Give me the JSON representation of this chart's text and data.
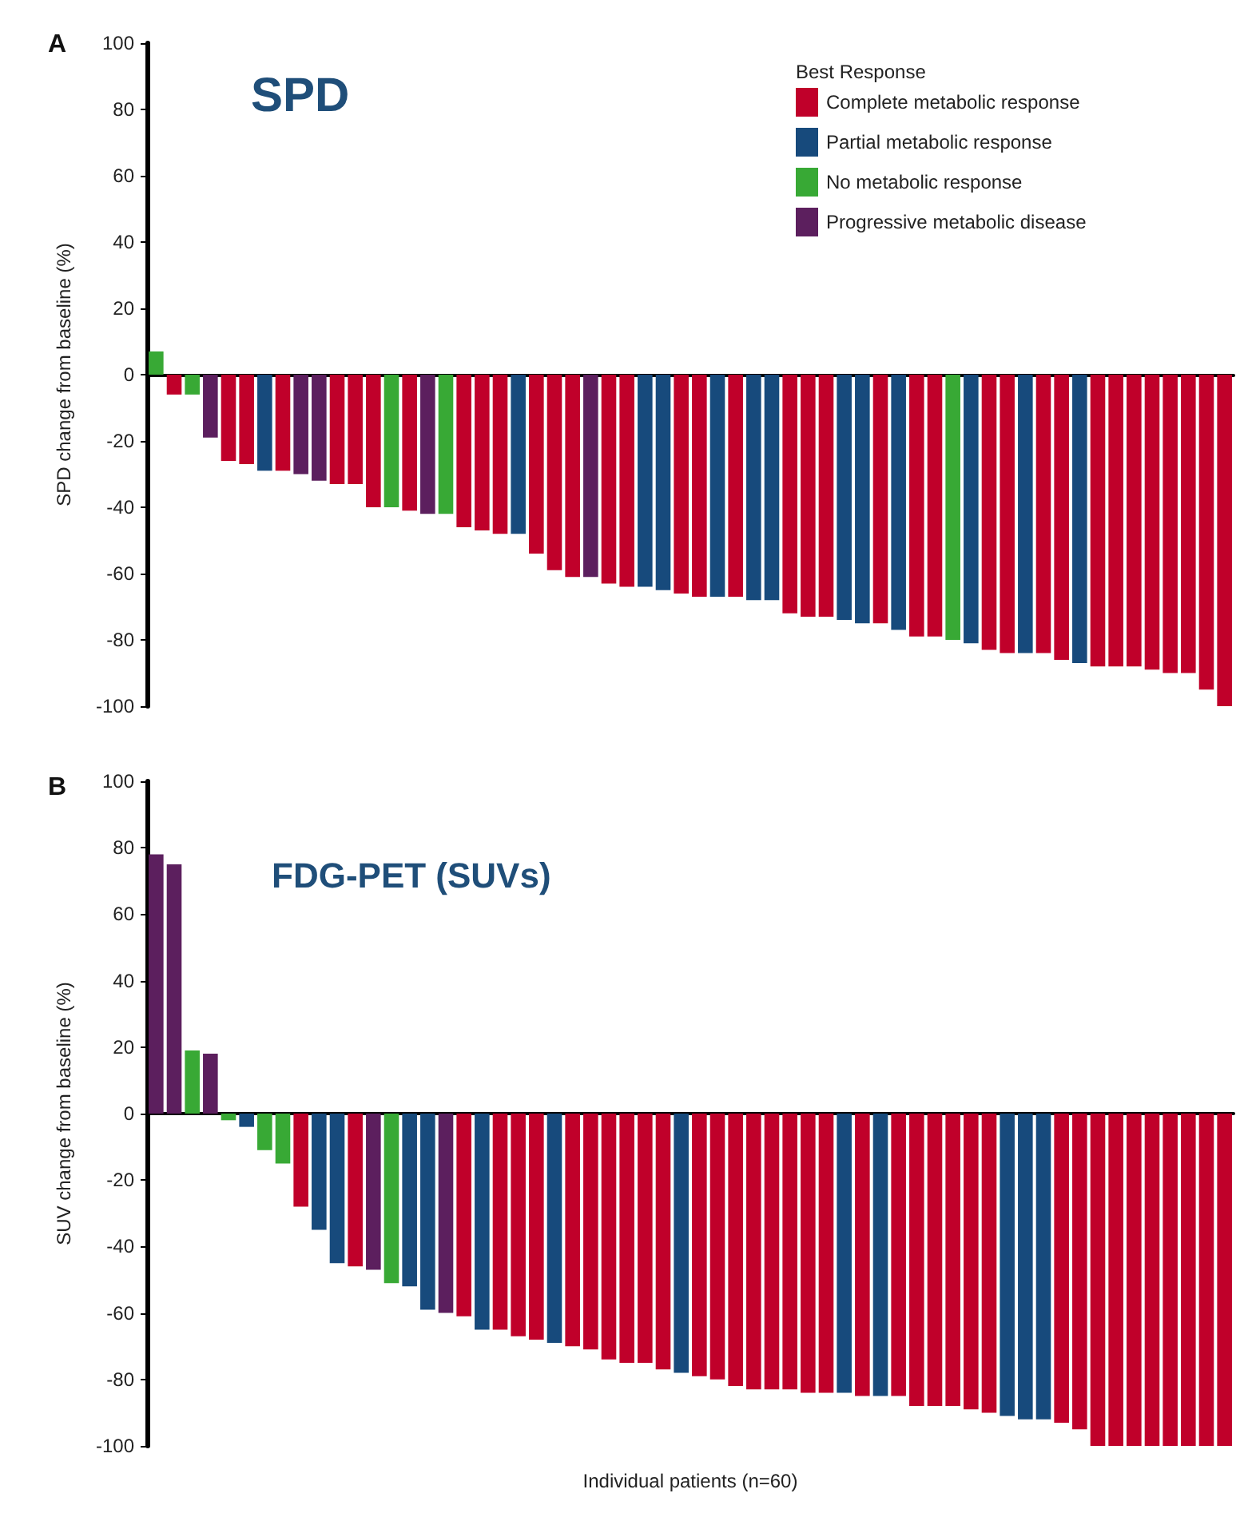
{
  "chart_data": [
    {
      "type": "bar",
      "title": "SPD",
      "ylabel": "SPD change from baseline (%)",
      "legend_title": "Best Response",
      "annotations": [
        "A"
      ],
      "legend": "top right",
      "stacked": true,
      "tick_labels": "y",
      "categories": [
        null,
        null,
        null,
        null,
        null,
        null,
        null,
        null,
        null,
        null,
        null,
        null,
        null,
        null,
        null,
        null,
        null,
        null,
        null,
        null,
        null,
        null,
        null,
        null,
        null,
        null,
        null,
        null,
        null,
        null,
        null,
        null,
        null,
        null,
        null,
        null,
        null,
        null,
        null,
        null,
        null,
        null,
        null,
        null,
        null,
        null,
        null,
        null,
        null,
        null,
        null,
        null,
        null,
        null,
        null,
        null,
        null,
        null,
        null,
        null
      ],
      "ylim": [
        -100,
        100
      ],
      "yticks": [
        -100,
        -80,
        -60,
        -40,
        -20,
        0,
        20,
        40,
        60,
        80,
        100
      ],
      "series": [
        {
          "name": "Complete metabolic response",
          "color": "#c0002a",
          "values": [
            null,
            -6,
            null,
            null,
            -26,
            -27,
            null,
            -29,
            null,
            null,
            -33,
            -33,
            -40,
            null,
            -41,
            null,
            null,
            -46,
            -47,
            -48,
            null,
            -54,
            -59,
            -61,
            null,
            -63,
            -64,
            null,
            null,
            -66,
            -67,
            null,
            -67,
            null,
            null,
            -72,
            -73,
            -73,
            null,
            null,
            -75,
            null,
            -79,
            -79,
            null,
            null,
            -83,
            -84,
            null,
            -84,
            -86,
            null,
            -88,
            -88,
            -88,
            -89,
            -90,
            -90,
            -95,
            -100
          ]
        },
        {
          "name": "Partial metabolic response",
          "color": "#174a7c",
          "values": [
            null,
            null,
            null,
            null,
            null,
            null,
            -29,
            null,
            null,
            null,
            null,
            null,
            null,
            null,
            null,
            null,
            null,
            null,
            null,
            null,
            -48,
            null,
            null,
            null,
            null,
            null,
            null,
            -64,
            -65,
            null,
            null,
            -67,
            null,
            -68,
            -68,
            null,
            null,
            null,
            -74,
            -75,
            null,
            -77,
            null,
            null,
            null,
            -81,
            null,
            null,
            -84,
            null,
            null,
            -87,
            null,
            null,
            null,
            null,
            null,
            null,
            null,
            null
          ]
        },
        {
          "name": "No metabolic response",
          "color": "#38a935",
          "values": [
            7,
            null,
            -6,
            null,
            null,
            null,
            null,
            null,
            null,
            null,
            null,
            null,
            null,
            -40,
            null,
            null,
            -42,
            null,
            null,
            null,
            null,
            null,
            null,
            null,
            null,
            null,
            null,
            null,
            null,
            null,
            null,
            null,
            null,
            null,
            null,
            null,
            null,
            null,
            null,
            null,
            null,
            null,
            null,
            null,
            -80,
            null,
            null,
            null,
            null,
            null,
            null,
            null,
            null,
            null,
            null,
            null,
            null,
            null,
            null,
            null
          ]
        },
        {
          "name": "Progressive metabolic disease",
          "color": "#5c1f5e",
          "values": [
            null,
            null,
            null,
            -19,
            null,
            null,
            null,
            null,
            -30,
            -32,
            null,
            null,
            null,
            null,
            null,
            -42,
            null,
            null,
            null,
            null,
            null,
            null,
            null,
            null,
            -61,
            null,
            null,
            null,
            null,
            null,
            null,
            null,
            null,
            null,
            null,
            null,
            null,
            null,
            null,
            null,
            null,
            null,
            null,
            null,
            null,
            null,
            null,
            null,
            null,
            null,
            null,
            null,
            null,
            null,
            null,
            null,
            null,
            null,
            null,
            null
          ]
        }
      ]
    },
    {
      "type": "bar",
      "title": "FDG-PET (SUVs)",
      "ylabel": "SUV change from baseline (%)",
      "xlabel": "Individual patients (n=60)",
      "annotations": [
        "B"
      ],
      "stacked": true,
      "tick_labels": "y",
      "categories": [
        null,
        null,
        null,
        null,
        null,
        null,
        null,
        null,
        null,
        null,
        null,
        null,
        null,
        null,
        null,
        null,
        null,
        null,
        null,
        null,
        null,
        null,
        null,
        null,
        null,
        null,
        null,
        null,
        null,
        null,
        null,
        null,
        null,
        null,
        null,
        null,
        null,
        null,
        null,
        null,
        null,
        null,
        null,
        null,
        null,
        null,
        null,
        null,
        null,
        null,
        null,
        null,
        null,
        null,
        null,
        null,
        null,
        null,
        null,
        null
      ],
      "ylim": [
        -100,
        100
      ],
      "yticks": [
        -100,
        -80,
        -60,
        -40,
        -20,
        0,
        20,
        40,
        60,
        80,
        100
      ],
      "series": [
        {
          "color": "#c0002a",
          "values": [
            null,
            null,
            null,
            null,
            null,
            null,
            null,
            null,
            -28,
            null,
            null,
            -46,
            null,
            null,
            null,
            null,
            null,
            -61,
            null,
            -65,
            -67,
            -68,
            null,
            -70,
            -71,
            -74,
            -75,
            -75,
            -77,
            null,
            -79,
            -80,
            -82,
            -83,
            -83,
            -83,
            -84,
            -84,
            null,
            -85,
            null,
            -85,
            -88,
            -88,
            -88,
            -89,
            -90,
            null,
            null,
            null,
            -93,
            -95,
            -100,
            -100,
            -100,
            -100,
            -100,
            -100,
            -100,
            -100
          ]
        },
        {
          "color": "#174a7c",
          "values": [
            null,
            null,
            null,
            null,
            null,
            -4,
            null,
            null,
            null,
            -35,
            -45,
            null,
            null,
            null,
            -52,
            -59,
            null,
            null,
            -65,
            null,
            null,
            null,
            -69,
            null,
            null,
            null,
            null,
            null,
            null,
            -78,
            null,
            null,
            null,
            null,
            null,
            null,
            null,
            null,
            -84,
            null,
            -85,
            null,
            null,
            null,
            null,
            null,
            null,
            -91,
            -92,
            -92,
            null,
            null,
            null,
            null,
            null,
            null,
            null,
            null,
            null,
            null
          ]
        },
        {
          "color": "#38a935",
          "values": [
            null,
            null,
            19,
            null,
            -2,
            null,
            -11,
            -15,
            null,
            null,
            null,
            null,
            null,
            -51,
            null,
            null,
            null,
            null,
            null,
            null,
            null,
            null,
            null,
            null,
            null,
            null,
            null,
            null,
            null,
            null,
            null,
            null,
            null,
            null,
            null,
            null,
            null,
            null,
            null,
            null,
            null,
            null,
            null,
            null,
            null,
            null,
            null,
            null,
            null,
            null,
            null,
            null,
            null,
            null,
            null,
            null,
            null,
            null,
            null,
            null
          ]
        },
        {
          "color": "#5c1f5e",
          "values": [
            78,
            75,
            null,
            18,
            null,
            null,
            null,
            null,
            null,
            null,
            null,
            null,
            -47,
            null,
            null,
            null,
            -60,
            null,
            null,
            null,
            null,
            null,
            null,
            null,
            null,
            null,
            null,
            null,
            null,
            null,
            null,
            null,
            null,
            null,
            null,
            null,
            null,
            null,
            null,
            null,
            null,
            null,
            null,
            null,
            null,
            null,
            null,
            null,
            null,
            null,
            null,
            null,
            null,
            null,
            null,
            null,
            null,
            null,
            null,
            null
          ]
        }
      ]
    }
  ]
}
